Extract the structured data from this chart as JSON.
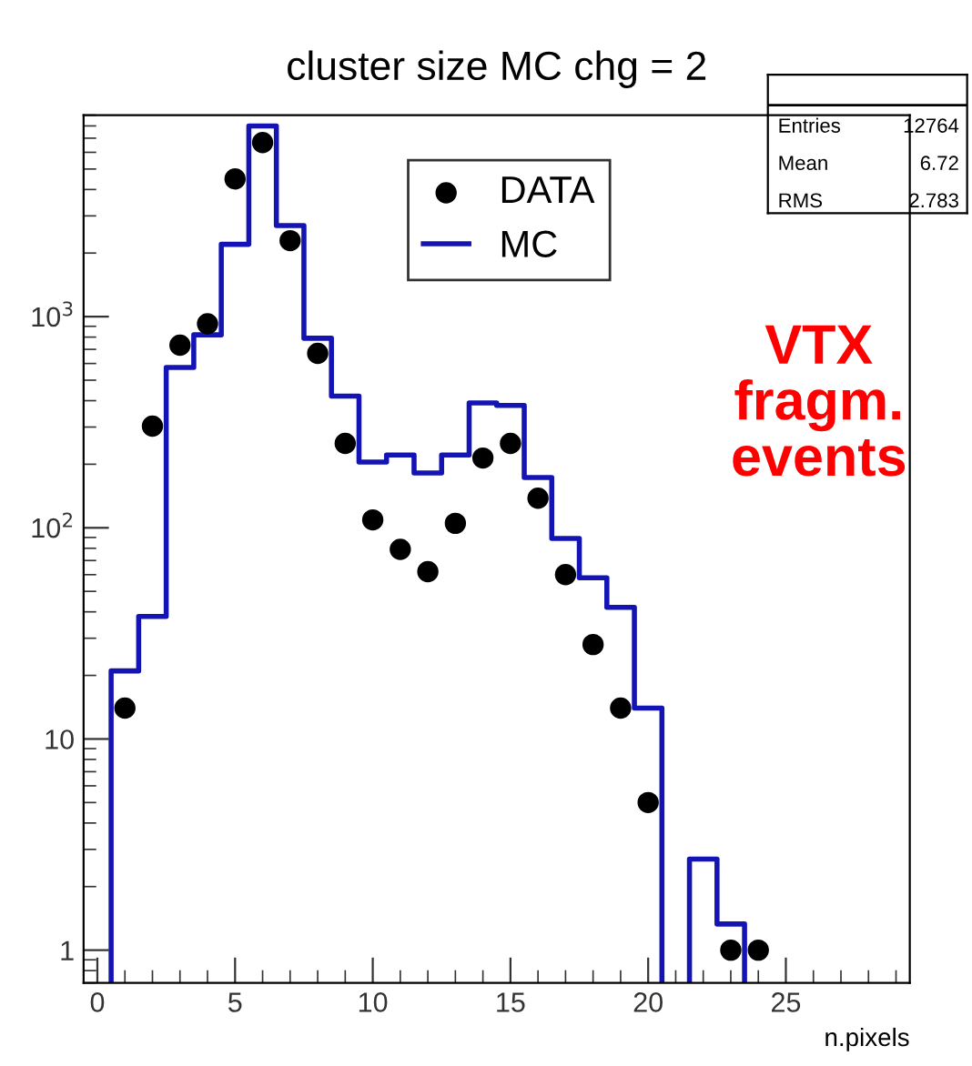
{
  "chart_data": {
    "type": "histogram",
    "title": "cluster size MC chg = 2",
    "xlabel": "n.pixels",
    "bins": [
      0.5,
      1.5,
      2.5,
      3.5,
      4.5,
      5.5,
      6.5,
      7.5,
      8.5,
      9.5,
      10.5,
      11.5,
      12.5,
      13.5,
      14.5,
      15.5,
      16.5,
      17.5,
      18.5,
      19.5,
      20.5,
      21.5,
      22.5,
      23.5
    ],
    "series": [
      {
        "name": "MC",
        "color": "#1414b4",
        "values": [
          21,
          38,
          575,
          820,
          2200,
          8000,
          2700,
          790,
          420,
          205,
          221,
          182,
          221,
          390,
          380,
          173,
          89,
          58,
          42,
          14,
          null,
          2.7,
          1.33
        ]
      },
      {
        "name": "DATA",
        "type": "scatter",
        "color": "#000000",
        "marker": "circle",
        "x": [
          1,
          2,
          3,
          4,
          5,
          6,
          7,
          8,
          9,
          10,
          11,
          12,
          13,
          14,
          15,
          16,
          17,
          18,
          19,
          20,
          23,
          24
        ],
        "values": [
          14,
          303,
          733,
          925,
          4490,
          6670,
          2290,
          670,
          251,
          109,
          79,
          62,
          105,
          214,
          251,
          138,
          60,
          28,
          14,
          5,
          1,
          1
        ]
      }
    ],
    "log": "y",
    "xlim": [
      -0.5,
      29.5
    ],
    "xticks": [
      0,
      5,
      10,
      15,
      20,
      25
    ],
    "ylim": [
      0.7,
      9000
    ],
    "yticks": [
      1,
      10,
      {
        "value": 100,
        "label": "10$^{2}$"
      },
      {
        "value": 1000,
        "label": "10$^{3}$"
      }
    ],
    "grid": false,
    "legend": "top right",
    "annotations": [
      "Entries",
      "12764",
      "Mean",
      "6.72",
      "RMS",
      "2.783",
      "VTX\nfragm.\nevents"
    ]
  }
}
